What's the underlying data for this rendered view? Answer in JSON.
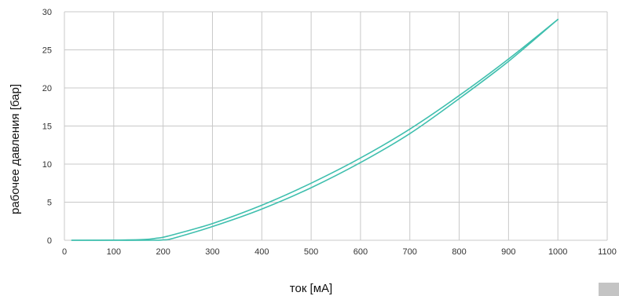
{
  "chart_data": {
    "type": "line",
    "title": "",
    "xlabel": "ток [мА]",
    "ylabel": "рабочее давления [бар]",
    "xlim": [
      0,
      1100
    ],
    "ylim": [
      0,
      30
    ],
    "xticks": [
      0,
      100,
      200,
      300,
      400,
      500,
      600,
      700,
      800,
      900,
      1000,
      1100
    ],
    "yticks": [
      0,
      5,
      10,
      15,
      20,
      25,
      30
    ],
    "grid": true,
    "legend": "none",
    "line_color": "#3fbfae",
    "grid_color": "#c8c8c8",
    "series": [
      {
        "x": [
          15,
          100,
          160,
          185,
          210,
          300,
          400,
          500,
          600,
          700,
          800,
          900,
          1000
        ],
        "y": [
          0.0,
          0.02,
          0.1,
          0.25,
          0.55,
          2.2,
          4.6,
          7.5,
          10.8,
          14.6,
          19.0,
          23.8,
          29.0
        ]
      },
      {
        "x": [
          15,
          100,
          180,
          200,
          220,
          300,
          400,
          500,
          600,
          700,
          800,
          900,
          1000
        ],
        "y": [
          0.0,
          0.0,
          0.0,
          0.05,
          0.25,
          1.8,
          4.1,
          6.9,
          10.2,
          14.0,
          18.6,
          23.5,
          29.0
        ]
      }
    ]
  }
}
